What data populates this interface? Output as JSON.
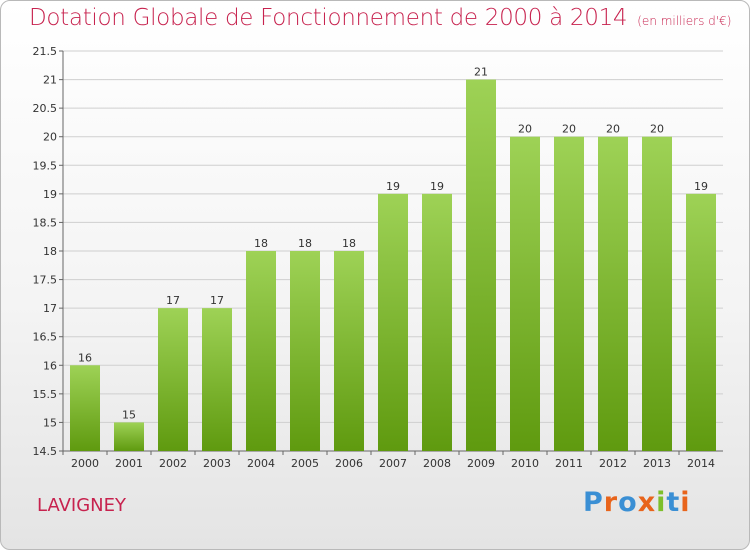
{
  "header": {
    "title": "Dotation Globale de Fonctionnement de 2000 à 2014",
    "unit": "(en milliers d'€)"
  },
  "commune": "LAVIGNEY",
  "logo": {
    "text": "Proxiti",
    "colors": [
      "#3a8fd4",
      "#e8641b",
      "#3a8fd4",
      "#e8641b",
      "#7dbf2a",
      "#3a8fd4",
      "#e8641b"
    ]
  },
  "colors": {
    "bar_top": "#9ed256",
    "bar_bottom": "#5f9a0f",
    "title": "#c7224e",
    "grid": "#cfcfcf"
  },
  "chart_data": {
    "type": "bar",
    "title": "Dotation Globale de Fonctionnement de 2000 à 2014",
    "subtitle": "(en milliers d'€)",
    "categories": [
      "2000",
      "2001",
      "2002",
      "2003",
      "2004",
      "2005",
      "2006",
      "2007",
      "2008",
      "2009",
      "2010",
      "2011",
      "2012",
      "2013",
      "2014"
    ],
    "values": [
      16,
      15,
      17,
      17,
      18,
      18,
      18,
      19,
      19,
      21,
      20,
      20,
      20,
      20,
      19
    ],
    "value_labels": [
      "16",
      "15",
      "17",
      "17",
      "18",
      "18",
      "18",
      "19",
      "19",
      "21",
      "20",
      "20",
      "20",
      "20",
      "19"
    ],
    "yticks": [
      "14.5",
      "15",
      "15.5",
      "16",
      "16.5",
      "17",
      "17.5",
      "18",
      "18.5",
      "19",
      "19.5",
      "20",
      "20.5",
      "21",
      "21.5"
    ],
    "ylim": [
      14.5,
      21.5
    ],
    "grid": true,
    "legend": "none"
  }
}
